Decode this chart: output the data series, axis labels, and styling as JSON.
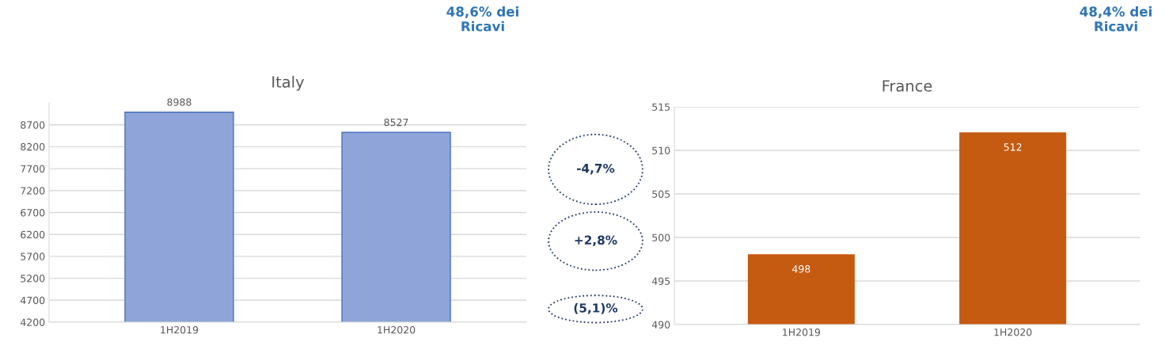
{
  "chart_data": [
    {
      "type": "bar",
      "title": "Italy",
      "categories": [
        "1H2019",
        "1H2020"
      ],
      "values": [
        8988,
        8527
      ],
      "color": "#8fa5d9",
      "ylim": [
        4200,
        9200
      ],
      "yticks": [
        4200,
        4700,
        5200,
        5700,
        6200,
        6700,
        7200,
        7700,
        8200,
        8700
      ],
      "grid": "y",
      "data_labels": true,
      "annotations": [
        "48,6% dei\nRicavi"
      ]
    },
    {
      "type": "other",
      "annotations": [
        "-4,7%",
        "+2,8%",
        "(5,1)%"
      ]
    },
    {
      "type": "bar",
      "title": "France",
      "categories": [
        "1H2019",
        "1H2020"
      ],
      "values": [
        498,
        512
      ],
      "color": "#c55a11",
      "ylim": [
        490,
        515
      ],
      "yticks": [
        490,
        495,
        500,
        505,
        510,
        515
      ],
      "grid": "y",
      "data_labels": true,
      "annotations": [
        "48,4% dei\nRicavi"
      ]
    }
  ]
}
